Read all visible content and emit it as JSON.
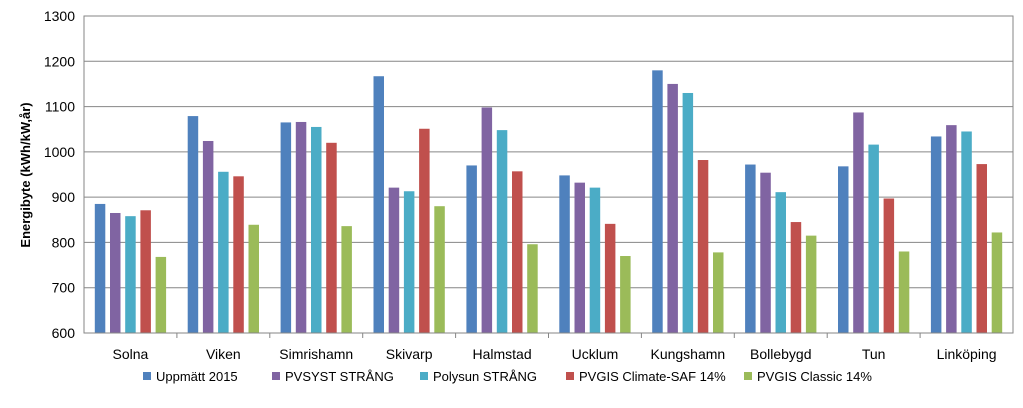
{
  "chart_data": {
    "type": "bar",
    "title": "",
    "xlabel": "",
    "ylabel": "Energibyte (kWh/kW,år)",
    "ylim": [
      600,
      1300
    ],
    "yticks": [
      600,
      700,
      800,
      900,
      1000,
      1100,
      1200,
      1300
    ],
    "grid": true,
    "legend_position": "bottom",
    "categories": [
      "Solna",
      "Viken",
      "Simrishamn",
      "Skivarp",
      "Halmstad",
      "Ucklum",
      "Kungshamn",
      "Bollebygd",
      "Tun",
      "Linköping"
    ],
    "series": [
      {
        "name": "Uppmätt 2015",
        "color": "#4F81BD",
        "values": [
          885,
          1079,
          1065,
          1167,
          970,
          948,
          1180,
          972,
          968,
          1034
        ]
      },
      {
        "name": "PVSYST STRÅNG",
        "color": "#8064A2",
        "values": [
          865,
          1024,
          1066,
          921,
          1098,
          932,
          1150,
          954,
          1087,
          1059
        ]
      },
      {
        "name": "Polysun STRÅNG",
        "color": "#4BACC6",
        "values": [
          858,
          956,
          1055,
          913,
          1048,
          921,
          1130,
          911,
          1016,
          1045
        ]
      },
      {
        "name": "PVGIS Climate-SAF 14%",
        "color": "#C0504D",
        "values": [
          871,
          946,
          1020,
          1051,
          957,
          841,
          982,
          845,
          897,
          973
        ]
      },
      {
        "name": "PVGIS Classic 14%",
        "color": "#9BBB59",
        "values": [
          768,
          839,
          836,
          880,
          796,
          770,
          778,
          815,
          780,
          822
        ]
      }
    ]
  }
}
